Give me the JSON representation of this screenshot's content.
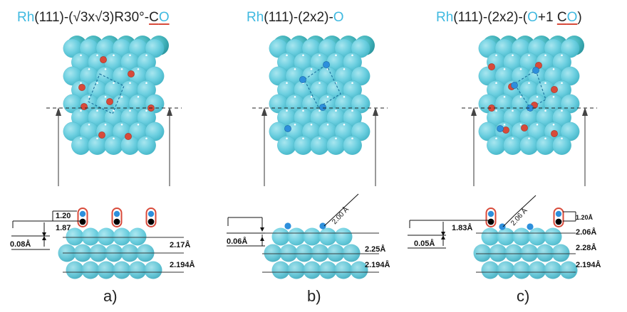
{
  "colors": {
    "rh": "#3fb9e0",
    "oxygen": "#2d8fdc",
    "carbon": "#000000",
    "co_oxygen_red": "#d84a3a",
    "sphere_light": "#6ccfe0",
    "sphere_dark": "#3fb0b8"
  },
  "panels": [
    {
      "id": "a",
      "label": "a)",
      "title": {
        "rh": "Rh",
        "rest": "(111)-(√3x√3)R30°-",
        "c": "C",
        "o": "O"
      },
      "dims": {
        "co_bond": "1.20",
        "height": "1.87",
        "buckling": "0.08Å",
        "l1": "2.17Å",
        "l2": "2.194Å"
      }
    },
    {
      "id": "b",
      "label": "b)",
      "title": {
        "rh": "Rh",
        "rest": "(111)-(2x2)-",
        "o": "O"
      },
      "dims": {
        "rh_o": "2.00 Å",
        "buckling": "0.06Å",
        "l1": "2.25Å",
        "l2": "2.194Å"
      }
    },
    {
      "id": "c",
      "label": "c)",
      "title": {
        "rh": "Rh",
        "rest": "(111)-(2x2)-(",
        "o1": "O",
        "plus": "+1 ",
        "c": "C",
        "o2": "O",
        "close": ")"
      },
      "dims": {
        "rh_o": "2.06 Å",
        "co_bond": "1.20Å",
        "height": "1.83Å",
        "buckling": "0.05Å",
        "l1": "2.06Å",
        "l2": "2.28Å",
        "l3": "2.194Å"
      }
    }
  ]
}
